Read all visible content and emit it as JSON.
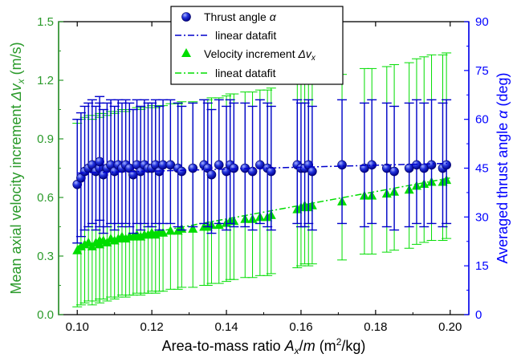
{
  "chart_data": {
    "type": "scatter",
    "xlabel": "Area-to-mass ratio A x/m (m²/kg)",
    "xlabel_parts": [
      "Area-to-mass ratio ",
      "A",
      "x",
      "/",
      "m",
      " (m",
      "2",
      "/kg)"
    ],
    "ylabel_left": "Mean axial velocity increment Δv x (m/s)",
    "ylabel_left_parts": [
      "Mean axial velocity increment  ",
      "Δv",
      "x",
      " (m/s)"
    ],
    "ylabel_right": "Averaged thrust angle α (deg)",
    "ylabel_right_parts": [
      "Averaged thrust angle  ",
      "α",
      " (deg)"
    ],
    "xlim": [
      0.095,
      0.205
    ],
    "ylim_left": [
      0,
      1.5
    ],
    "ylim_right": [
      0,
      90
    ],
    "x_ticks": [
      "0.10",
      "0.12",
      "0.14",
      "0.16",
      "0.18",
      "0.20"
    ],
    "y_left_ticks": [
      "0.0",
      "0.3",
      "0.6",
      "0.9",
      "1.2",
      "1.5"
    ],
    "y_right_ticks": [
      "0",
      "15",
      "30",
      "45",
      "60",
      "75",
      "90"
    ],
    "colors": {
      "thrust": "#0000cc",
      "velocity": "#00dd00",
      "left_axis": "#2a9a2a",
      "right_axis": "#0000ff"
    },
    "legend": {
      "placement": "top-center",
      "entries": [
        {
          "label": "Thrust angle  α",
          "kind": "marker-circle",
          "color": "#0000cc"
        },
        {
          "label": "linear datafit",
          "kind": "dashdot-line",
          "color": "#0000cc"
        },
        {
          "label": "Velocity increment  Δv x",
          "kind": "marker-triangle",
          "color": "#00dd00"
        },
        {
          "label": "lineat datafit",
          "kind": "dashdot-line",
          "color": "#00dd00"
        }
      ]
    },
    "series": [
      {
        "name": "Thrust angle α",
        "axis": "right",
        "marker": "circle",
        "color": "#0000cc",
        "error_low": 18,
        "error_high": 20,
        "x": [
          0.1,
          0.101,
          0.102,
          0.103,
          0.104,
          0.105,
          0.106,
          0.106,
          0.107,
          0.108,
          0.109,
          0.11,
          0.111,
          0.112,
          0.113,
          0.114,
          0.115,
          0.116,
          0.117,
          0.118,
          0.119,
          0.12,
          0.121,
          0.122,
          0.123,
          0.125,
          0.127,
          0.128,
          0.131,
          0.134,
          0.135,
          0.136,
          0.138,
          0.14,
          0.141,
          0.142,
          0.145,
          0.147,
          0.149,
          0.151,
          0.152,
          0.159,
          0.16,
          0.161,
          0.162,
          0.163,
          0.171,
          0.177,
          0.179,
          0.183,
          0.185,
          0.189,
          0.191,
          0.193,
          0.195,
          0.198,
          0.199
        ],
        "y": [
          40,
          42,
          44,
          45,
          46,
          44,
          45,
          47,
          43,
          45,
          46,
          44,
          46,
          45,
          46,
          45,
          43,
          46,
          44,
          46,
          45,
          45,
          46,
          44,
          46,
          46,
          45,
          44,
          45,
          46,
          45,
          43,
          46,
          44,
          46,
          45,
          45,
          44,
          46,
          45,
          44,
          46,
          45,
          45,
          46,
          44,
          46,
          45,
          46,
          45,
          44,
          45,
          46,
          45,
          46,
          45,
          46
        ]
      },
      {
        "name": "Velocity increment Δv x",
        "axis": "left",
        "marker": "triangle",
        "color": "#00dd00",
        "error_low": 0.3,
        "error_high": 0.65,
        "x": [
          0.1,
          0.101,
          0.102,
          0.103,
          0.104,
          0.105,
          0.106,
          0.106,
          0.107,
          0.108,
          0.109,
          0.11,
          0.111,
          0.112,
          0.113,
          0.114,
          0.115,
          0.116,
          0.117,
          0.118,
          0.119,
          0.12,
          0.121,
          0.122,
          0.123,
          0.125,
          0.127,
          0.128,
          0.131,
          0.134,
          0.135,
          0.136,
          0.138,
          0.14,
          0.141,
          0.142,
          0.145,
          0.147,
          0.149,
          0.151,
          0.152,
          0.159,
          0.16,
          0.161,
          0.162,
          0.163,
          0.171,
          0.177,
          0.179,
          0.183,
          0.185,
          0.189,
          0.191,
          0.193,
          0.195,
          0.198,
          0.199
        ],
        "y": [
          0.33,
          0.35,
          0.36,
          0.37,
          0.35,
          0.37,
          0.38,
          0.36,
          0.38,
          0.37,
          0.39,
          0.38,
          0.39,
          0.4,
          0.39,
          0.4,
          0.4,
          0.41,
          0.4,
          0.41,
          0.41,
          0.42,
          0.41,
          0.42,
          0.42,
          0.43,
          0.43,
          0.44,
          0.44,
          0.45,
          0.45,
          0.46,
          0.46,
          0.47,
          0.48,
          0.48,
          0.49,
          0.49,
          0.5,
          0.5,
          0.51,
          0.54,
          0.55,
          0.56,
          0.55,
          0.56,
          0.58,
          0.61,
          0.61,
          0.62,
          0.63,
          0.64,
          0.66,
          0.67,
          0.68,
          0.68,
          0.69
        ]
      }
    ],
    "fits": [
      {
        "name": "linear datafit",
        "axis": "right",
        "color": "#0000cc",
        "x": [
          0.1,
          0.2
        ],
        "y": [
          43.5,
          46.5
        ]
      },
      {
        "name": "lineat datafit",
        "axis": "left",
        "color": "#00dd00",
        "x": [
          0.1,
          0.2
        ],
        "y": [
          0.35,
          0.7
        ]
      }
    ]
  }
}
